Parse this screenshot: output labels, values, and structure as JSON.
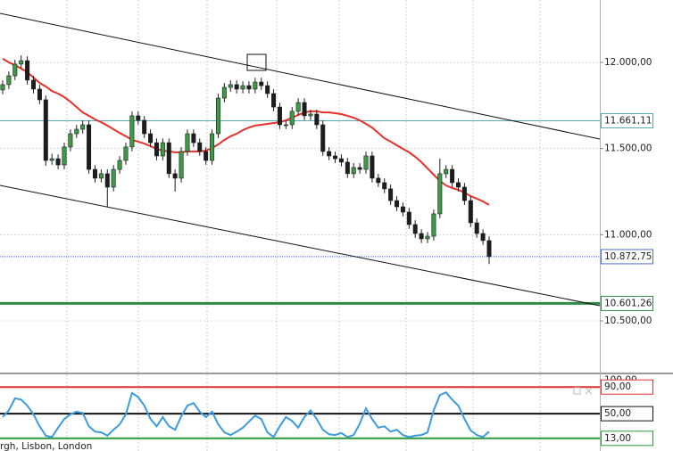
{
  "chart_data": [
    {
      "type": "candlestick",
      "open": [
        11840,
        11871,
        11922,
        11990,
        12010,
        11897,
        11845,
        11783,
        11431,
        11441,
        11405,
        11509,
        11586,
        11612,
        11638,
        11379,
        11328,
        11354,
        11276,
        11379,
        11431,
        11509,
        11690,
        11664,
        11586,
        11534,
        11457,
        11534,
        11354,
        11328,
        11483,
        11586,
        11534,
        11483,
        11431,
        11586,
        11793,
        11855,
        11871,
        11845,
        11865,
        11845,
        11886,
        11865,
        11819,
        11741,
        11638,
        11638,
        11716,
        11767,
        11690,
        11700,
        11638,
        11483,
        11457,
        11441,
        11421,
        11354,
        11390,
        11379,
        11457,
        11328,
        11302,
        11266,
        11198,
        11162,
        11131,
        11059,
        11007,
        10976,
        10991,
        11121,
        11354,
        11379,
        11302,
        11276,
        11198,
        11069,
        11007,
        10966
      ],
      "high": [
        11896,
        11947,
        12015,
        12040,
        12035,
        11922,
        11870,
        11808,
        11470,
        11466,
        11534,
        11611,
        11637,
        11663,
        11663,
        11404,
        11379,
        11379,
        11404,
        11456,
        11534,
        11715,
        11715,
        11689,
        11611,
        11559,
        11559,
        11559,
        11379,
        11508,
        11611,
        11611,
        11559,
        11508,
        11611,
        11818,
        11880,
        11896,
        11896,
        11890,
        11890,
        11911,
        11911,
        11890,
        11844,
        11766,
        11663,
        11741,
        11792,
        11792,
        11725,
        11725,
        11663,
        11508,
        11482,
        11466,
        11446,
        11415,
        11415,
        11482,
        11482,
        11353,
        11327,
        11291,
        11223,
        11187,
        11156,
        11084,
        11032,
        11016,
        11146,
        11441,
        11404,
        11404,
        11327,
        11301,
        11223,
        11094,
        11032,
        10991
      ],
      "low": [
        11815,
        11846,
        11897,
        11965,
        11872,
        11820,
        11758,
        11400,
        11406,
        11380,
        11380,
        11484,
        11561,
        11587,
        11354,
        11303,
        11303,
        11162,
        11251,
        11354,
        11406,
        11484,
        11639,
        11561,
        11509,
        11432,
        11432,
        11329,
        11250,
        11303,
        11458,
        11509,
        11458,
        11406,
        11406,
        11561,
        11768,
        11830,
        11820,
        11820,
        11820,
        11820,
        11840,
        11794,
        11716,
        11613,
        11613,
        11613,
        11691,
        11665,
        11665,
        11613,
        11458,
        11432,
        11416,
        11396,
        11329,
        11329,
        11354,
        11354,
        11303,
        11277,
        11241,
        11173,
        11137,
        11106,
        11034,
        10982,
        10951,
        10951,
        10966,
        11096,
        11329,
        11277,
        11251,
        11173,
        11044,
        10982,
        10941,
        10830
      ],
      "close": [
        11871,
        11922,
        11990,
        12010,
        11897,
        11845,
        11783,
        11431,
        11441,
        11405,
        11509,
        11586,
        11612,
        11638,
        11379,
        11328,
        11354,
        11276,
        11379,
        11431,
        11509,
        11690,
        11664,
        11586,
        11534,
        11457,
        11534,
        11354,
        11328,
        11483,
        11586,
        11534,
        11483,
        11431,
        11586,
        11793,
        11855,
        11871,
        11845,
        11865,
        11845,
        11886,
        11865,
        11819,
        11741,
        11638,
        11638,
        11716,
        11767,
        11690,
        11700,
        11638,
        11483,
        11457,
        11441,
        11421,
        11354,
        11390,
        11379,
        11457,
        11328,
        11302,
        11266,
        11198,
        11162,
        11131,
        11059,
        11007,
        10976,
        10991,
        11121,
        11354,
        11379,
        11302,
        11276,
        11198,
        11069,
        11007,
        10966,
        10872.75
      ],
      "up_color": "#3d9a45",
      "down_color": "#1d1d1d",
      "moving_average": {
        "color": "#e8302a",
        "values": [
          12021,
          12000,
          11984,
          11964,
          11943,
          11912,
          11881,
          11860,
          11834,
          11819,
          11798,
          11772,
          11741,
          11710,
          11690,
          11669,
          11653,
          11633,
          11612,
          11591,
          11571,
          11550,
          11540,
          11529,
          11514,
          11498,
          11488,
          11483,
          11478,
          11478,
          11483,
          11483,
          11483,
          11488,
          11503,
          11524,
          11550,
          11571,
          11586,
          11607,
          11622,
          11633,
          11638,
          11643,
          11648,
          11653,
          11664,
          11679,
          11695,
          11710,
          11716,
          11716,
          11710,
          11710,
          11705,
          11700,
          11690,
          11679,
          11664,
          11643,
          11622,
          11591,
          11560,
          11540,
          11519,
          11498,
          11478,
          11452,
          11421,
          11385,
          11348,
          11312,
          11286,
          11271,
          11260,
          11245,
          11224,
          11209,
          11193,
          11173
        ]
      },
      "ylim": [
        10200,
        12362
      ],
      "yticks": [
        {
          "value": 12000,
          "label": "12.000,00"
        },
        {
          "value": 11500,
          "label": "11.500,00"
        },
        {
          "value": 11000,
          "label": "11.000,00"
        },
        {
          "value": 10500,
          "label": "10.500,00"
        }
      ],
      "grid": true,
      "levels": [
        {
          "value": 11661.11,
          "label": "11.661,11",
          "color": "#5aa9b0"
        },
        {
          "value": 10872.75,
          "label": "10.872,75",
          "color": "#4a6fd0"
        },
        {
          "value": 10601.26,
          "label": "10.601,26",
          "color": "#2f8a45"
        }
      ],
      "footer": "rgh, Lisbon, London"
    },
    {
      "type": "line",
      "values": [
        45,
        55,
        73,
        71,
        62,
        49,
        31,
        17,
        15,
        29,
        42,
        49,
        53,
        51,
        31,
        23,
        22,
        17,
        26,
        34,
        49,
        81,
        75,
        62,
        42,
        31,
        45,
        31,
        26,
        46,
        62,
        66,
        53,
        45,
        53,
        34,
        22,
        18,
        23,
        29,
        38,
        47,
        42,
        22,
        15,
        31,
        45,
        39,
        29,
        45,
        55,
        42,
        26,
        19,
        18,
        21,
        15,
        18,
        35,
        58,
        42,
        29,
        31,
        23,
        26,
        18,
        15,
        17,
        18,
        22,
        55,
        78,
        82,
        71,
        62,
        42,
        25,
        18,
        15,
        23
      ],
      "color": "#3b9be0",
      "ylim": [
        -6,
        109
      ],
      "yticks": [
        {
          "value": 100,
          "label": "100,00"
        }
      ],
      "levels": [
        {
          "value": 90,
          "label": "90,00",
          "color": "#e03030"
        },
        {
          "value": 50,
          "label": "50,00",
          "color": "#111111"
        },
        {
          "value": 13,
          "label": "13,00",
          "color": "#2a9a3a"
        }
      ]
    }
  ]
}
